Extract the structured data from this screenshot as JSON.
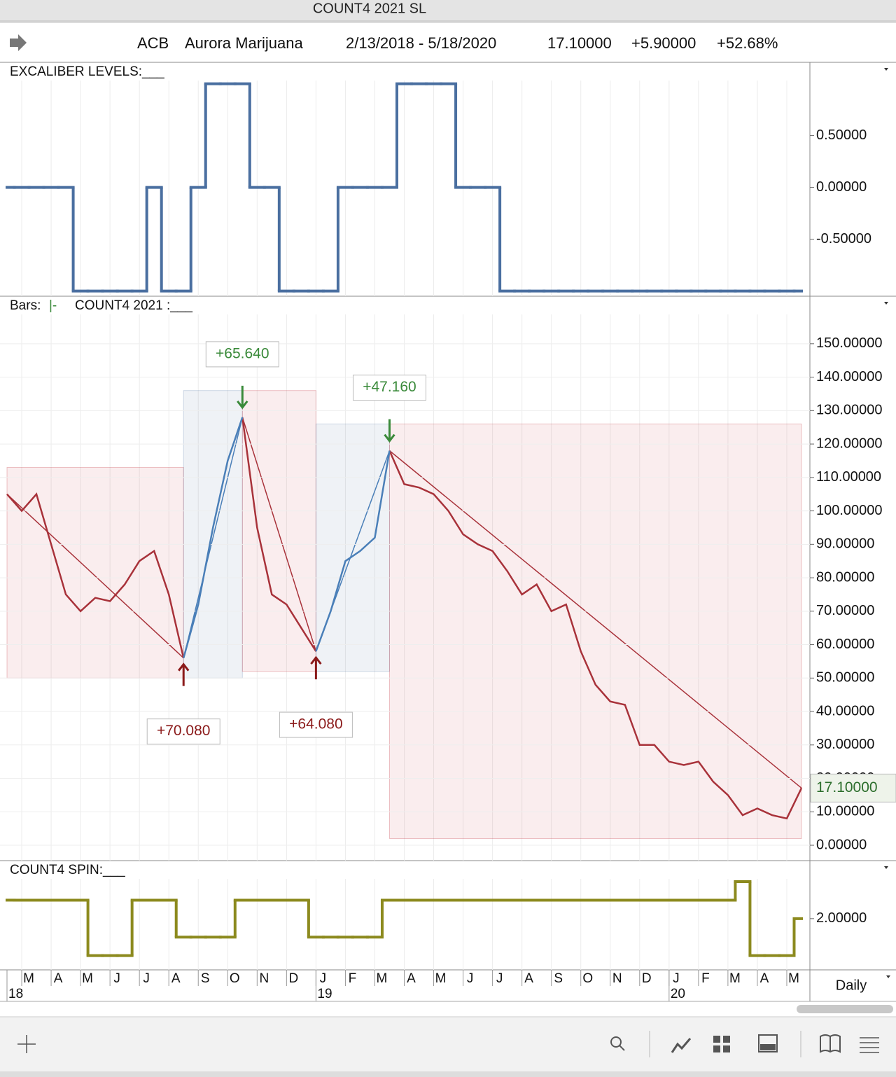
{
  "window_title": "COUNT4 2021 SL",
  "header": {
    "symbol": "ACB",
    "name": "Aurora Marijuana",
    "range": "2/13/2018 - 5/18/2020",
    "last": "17.10000",
    "change": "+5.90000",
    "change_pct": "+52.68%"
  },
  "period": "Daily",
  "years": [
    "18",
    "19",
    "20"
  ],
  "chart_data": [
    {
      "type": "step",
      "title": "EXCALIBER LEVELS:___",
      "color": "#4a6fa0",
      "values": [
        0,
        0,
        0,
        0,
        0,
        -1,
        -1,
        -1,
        -1,
        -1,
        0,
        -1,
        -1,
        0,
        1,
        1,
        1,
        0,
        0,
        -1,
        -1,
        -1,
        -1,
        0,
        0,
        0,
        0,
        1,
        1,
        1,
        1,
        0,
        0,
        0,
        -1,
        -1,
        -1,
        -1,
        -1,
        -1,
        -1,
        -1,
        -1,
        -1,
        -1,
        -1,
        -1,
        -1,
        -1,
        -1,
        -1,
        -1,
        -1,
        -1,
        -1
      ],
      "ylim": [
        -1.05,
        1.2
      ],
      "yticks": [
        {
          "value": 0.5,
          "label": "0.50000"
        },
        {
          "value": 0,
          "label": "0.00000"
        },
        {
          "value": -0.5,
          "label": "-0.50000"
        }
      ]
    },
    {
      "type": "line",
      "title": "COUNT4 2021 :___",
      "bars_label": "Bars:",
      "bars_symbol": "|-",
      "categories": [
        null,
        "M",
        null,
        "A",
        null,
        "M",
        null,
        "J",
        null,
        "J",
        null,
        "A",
        null,
        "S",
        null,
        "O",
        null,
        "N",
        null,
        "D",
        null,
        "J",
        null,
        "F",
        null,
        "M",
        null,
        "A",
        null,
        "M",
        null,
        "J",
        null,
        "J",
        null,
        "A",
        null,
        "S",
        null,
        "O",
        null,
        "N",
        null,
        "D",
        null,
        "J",
        null,
        "F",
        null,
        "M",
        null,
        "A",
        null,
        "M",
        null
      ],
      "series": [
        {
          "color": "#a8323a",
          "values": [
            105,
            100,
            105,
            90,
            75,
            70,
            74,
            73,
            78,
            85,
            88,
            75,
            56,
            null,
            null,
            null,
            128,
            95,
            75,
            72,
            65,
            58,
            null,
            null,
            null,
            null,
            118,
            108,
            107,
            105,
            100,
            93,
            90,
            88,
            82,
            75,
            78,
            70,
            72,
            58,
            48,
            43,
            42,
            30,
            30,
            25,
            24,
            25,
            19,
            15,
            9,
            11,
            9,
            8,
            17.1
          ]
        },
        {
          "color": "#4a7fb8",
          "values": [
            null,
            null,
            null,
            null,
            null,
            null,
            null,
            null,
            null,
            null,
            null,
            null,
            56,
            72,
            95,
            115,
            128,
            null,
            null,
            null,
            null,
            58,
            70,
            85,
            88,
            92,
            118,
            null,
            null,
            null,
            null,
            null,
            null,
            null,
            null,
            null,
            null,
            null,
            null,
            null,
            null,
            null,
            null,
            null,
            null,
            null,
            null,
            null,
            null,
            null,
            null,
            null,
            null,
            null,
            null
          ]
        }
      ],
      "last_label": "17.10000",
      "annotations": [
        {
          "text": "+70.080",
          "color": "#8b1a1a"
        },
        {
          "text": "+65.640",
          "color": "#3a8a3a"
        },
        {
          "text": "+64.080",
          "color": "#8b1a1a"
        },
        {
          "text": "+47.160",
          "color": "#3a8a3a"
        }
      ],
      "ylim": [
        -4.6,
        164
      ],
      "yticks": [
        {
          "value": 150,
          "label": "150.00000"
        },
        {
          "value": 140,
          "label": "140.00000"
        },
        {
          "value": 130,
          "label": "130.00000"
        },
        {
          "value": 120,
          "label": "120.00000"
        },
        {
          "value": 110,
          "label": "110.00000"
        },
        {
          "value": 100,
          "label": "100.00000"
        },
        {
          "value": 90,
          "label": "90.00000"
        },
        {
          "value": 80,
          "label": "80.00000"
        },
        {
          "value": 70,
          "label": "70.00000"
        },
        {
          "value": 60,
          "label": "60.00000"
        },
        {
          "value": 50,
          "label": "50.00000"
        },
        {
          "value": 40,
          "label": "40.00000"
        },
        {
          "value": 30,
          "label": "30.00000"
        },
        {
          "value": 20,
          "label": "20.00000"
        },
        {
          "value": 10,
          "label": "10.00000"
        },
        {
          "value": 0,
          "label": "0.00000"
        }
      ]
    },
    {
      "type": "step",
      "title": "COUNT4 SPIN:___",
      "color": "#8c8a1e",
      "values": [
        3,
        3,
        3,
        3,
        3,
        3,
        0,
        0,
        0,
        3,
        3,
        3,
        1,
        1,
        1,
        1,
        3,
        3,
        3,
        3,
        3,
        1,
        1,
        1,
        1,
        1,
        3,
        3,
        3,
        3,
        3,
        3,
        3,
        3,
        3,
        3,
        3,
        3,
        3,
        3,
        3,
        3,
        3,
        3,
        3,
        3,
        3,
        3,
        3,
        3,
        4,
        0,
        0,
        0,
        2
      ],
      "ylim": [
        -0.77,
        5.1
      ],
      "yticks": [
        {
          "value": 2,
          "label": "2.00000"
        }
      ]
    }
  ]
}
